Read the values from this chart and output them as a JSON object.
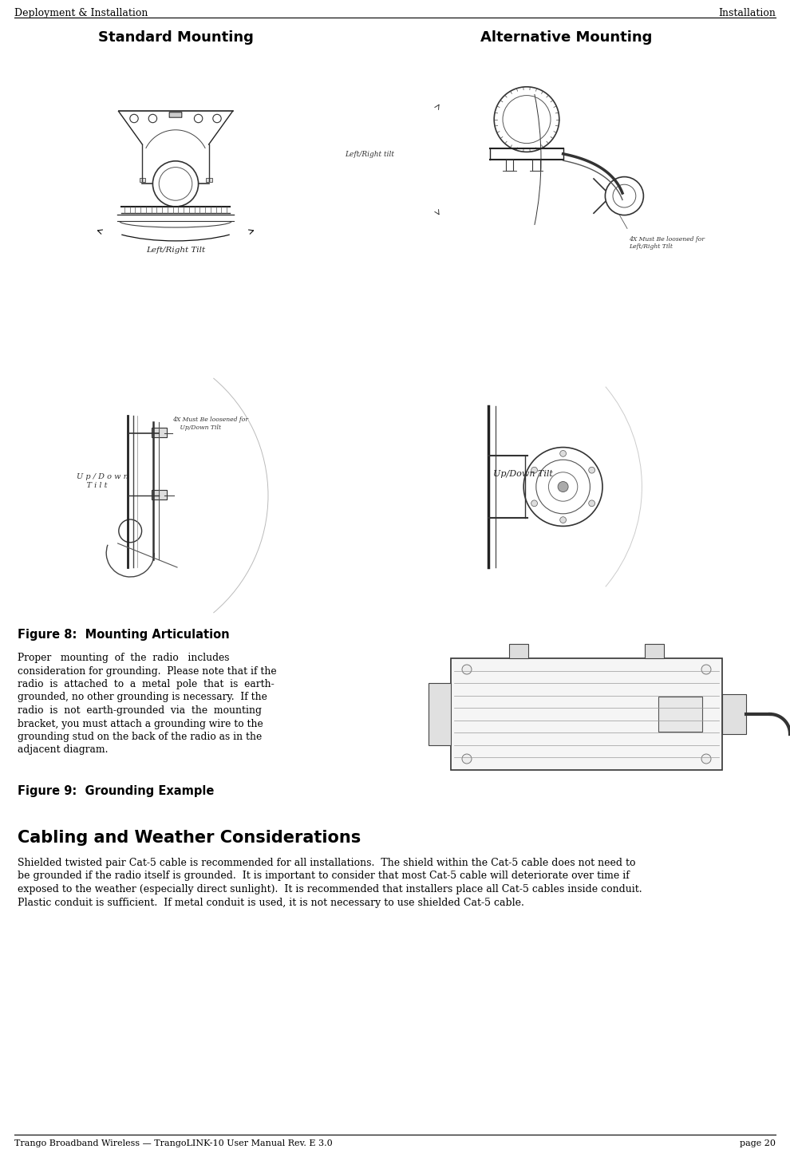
{
  "header_left": "Deployment & Installation",
  "header_right": "Installation",
  "footer_left": "Trango Broadband Wireless — TrangoLINK-10 User Manual Rev. E 3.0",
  "footer_right": "page 20",
  "title_standard": "Standard Mounting",
  "title_alternative": "Alternative Mounting",
  "fig8_caption": "Figure 8:  Mounting Articulation",
  "fig9_caption": "Figure 9:  Grounding Example",
  "section_title": "Cabling and Weather Considerations",
  "bg_color": "#ffffff",
  "text_color": "#000000",
  "header_font_size": 9,
  "title_font_size": 13,
  "caption_font_size": 10.5,
  "section_font_size": 15,
  "body_font_size": 9,
  "line_color": "#000000",
  "std_top_label": "Left/Right Tilt",
  "alt_top_label": "Left/Right tilt",
  "alt_top_note": "4X Must Be loosened for\nLeft/Right Tilt",
  "std_bot_label_ud": "U p / D o w n\n   T i l t",
  "std_bot_note": "4X Must Be loosened for\n    Up/Down Tilt",
  "alt_bot_label": "Up/Down Tilt",
  "grounding_lines": [
    "Proper   mounting  of  the  radio   includes",
    "consideration for grounding.  Please note that if the",
    "radio  is  attached  to  a  metal  pole  that  is  earth-",
    "grounded, no other grounding is necessary.  If the",
    "radio  is  not  earth-grounded  via  the  mounting",
    "bracket, you must attach a grounding wire to the",
    "grounding stud on the back of the radio as in the",
    "adjacent diagram."
  ],
  "body_lines": [
    "Shielded twisted pair Cat-5 cable is recommended for all installations.  The shield within the Cat-5 cable does not need to",
    "be grounded if the radio itself is grounded.  It is important to consider that most Cat-5 cable will deteriorate over time if",
    "exposed to the weather (especially direct sunlight).  It is recommended that installers place all Cat-5 cables inside conduit.",
    "Plastic conduit is sufficient.  If metal conduit is used, it is not necessary to use shielded Cat-5 cable."
  ]
}
